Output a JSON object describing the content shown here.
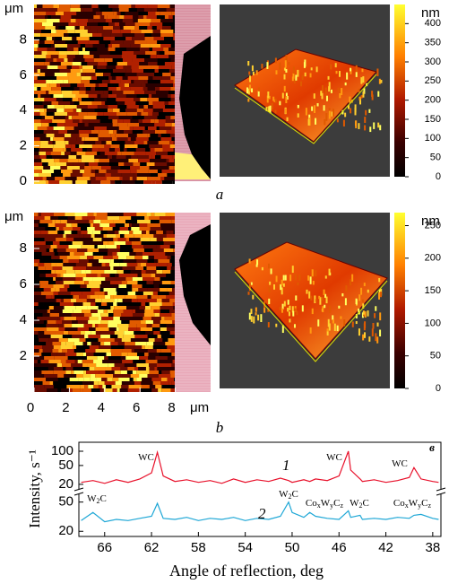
{
  "panel_a": {
    "letter": "a",
    "y_label": "μm",
    "ylim": [
      0,
      10
    ],
    "yticks": [
      0,
      2,
      4,
      6,
      8
    ],
    "colorbar": {
      "label": "nm",
      "lim": [
        0,
        450
      ],
      "ticks": [
        0,
        50,
        100,
        150,
        200,
        250,
        300,
        350,
        400
      ]
    }
  },
  "panel_b": {
    "letter": "b",
    "y_label": "μm",
    "ylim": [
      0,
      10
    ],
    "yticks": [
      2,
      4,
      6,
      8
    ],
    "x_label": "μm",
    "xlim": [
      0,
      10
    ],
    "xticks": [
      0,
      2,
      4,
      6,
      8
    ],
    "colorbar": {
      "label": "nm",
      "lim": [
        0,
        270
      ],
      "ticks": [
        0,
        50,
        100,
        150,
        200,
        250
      ]
    }
  },
  "chart_data": {
    "type": "line",
    "letter": "в",
    "x_label": "Angle of reflection, deg",
    "y_label": "Intensity, s⁻¹",
    "xlim": [
      68.2,
      37.3
    ],
    "xticks": [
      66,
      62,
      58,
      54,
      50,
      46,
      42,
      38
    ],
    "log_y": true,
    "ylim_upper": [
      16,
      130
    ],
    "yticks_upper": [
      20,
      50,
      100
    ],
    "ylim_lower": [
      18,
      62
    ],
    "yticks_lower": [
      20,
      50
    ],
    "x": [
      68,
      67,
      66,
      65,
      64,
      63,
      62,
      61.5,
      61,
      60,
      59,
      58,
      57,
      56,
      55,
      54,
      53,
      52,
      51,
      50.3,
      50,
      49,
      48.5,
      48,
      47,
      46,
      45.2,
      45,
      44.2,
      44,
      43,
      42,
      41,
      40,
      39.6,
      39,
      38,
      37.5
    ],
    "series": [
      {
        "name": "1",
        "color": "#e8102a",
        "panel": "upper",
        "values": [
          22,
          24,
          21,
          25,
          22,
          26,
          35,
          95,
          30,
          23,
          25,
          22,
          24,
          21,
          26,
          22,
          25,
          23,
          27,
          24,
          22,
          25,
          23,
          26,
          24,
          30,
          100,
          40,
          26,
          23,
          25,
          22,
          24,
          28,
          45,
          26,
          23,
          22
        ]
      },
      {
        "name": "2",
        "color": "#1ea7d6",
        "panel": "lower",
        "values": [
          28,
          36,
          27,
          29,
          28,
          30,
          32,
          48,
          30,
          29,
          31,
          28,
          30,
          29,
          31,
          28,
          30,
          29,
          32,
          50,
          36,
          31,
          36,
          32,
          30,
          29,
          38,
          31,
          33,
          29,
          30,
          29,
          31,
          30,
          33,
          34,
          30,
          29
        ]
      }
    ],
    "annotations": [
      {
        "parts": [
          "WC"
        ]
      },
      {
        "parts": [
          "WC"
        ]
      },
      {
        "parts": [
          "WC"
        ]
      },
      {
        "parts": [
          "W",
          "2",
          "C"
        ]
      },
      {
        "parts": [
          "W",
          "2",
          "C"
        ]
      },
      {
        "parts": [
          "Co",
          "x",
          "W",
          "y",
          "C",
          "z"
        ]
      },
      {
        "parts": [
          "W",
          "2",
          "C"
        ]
      },
      {
        "parts": [
          "Co",
          "x",
          "W",
          "y",
          "C",
          "z"
        ]
      }
    ]
  }
}
